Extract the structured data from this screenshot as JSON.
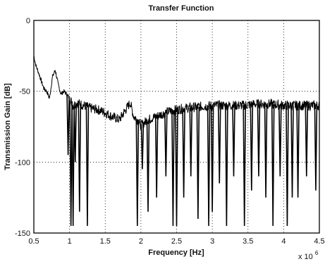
{
  "chart_data": {
    "type": "line",
    "title": "Transfer Function",
    "xlabel": "Frequency [Hz]",
    "ylabel": "Transmission Gain [dB]",
    "x_multiplier_label": "x 10",
    "x_multiplier_exponent": "6",
    "xlim": [
      0.5,
      4.5
    ],
    "ylim": [
      -150,
      0
    ],
    "x_ticks": [
      "0.5",
      "1",
      "1.5",
      "2",
      "2.5",
      "3",
      "3.5",
      "4",
      "4.5"
    ],
    "y_ticks": [
      "0",
      "-50",
      "-100",
      "-150"
    ],
    "grid": "dotted",
    "series": [
      {
        "values_note": "",
        "x": [
          0.5,
          0.53,
          0.56,
          0.6,
          0.64,
          0.68,
          0.72,
          0.76,
          0.8,
          0.84,
          0.88,
          0.92,
          0.96,
          1.0,
          1.05,
          1.1,
          1.2,
          1.3,
          1.4,
          1.5,
          1.6,
          1.7,
          1.8,
          1.85,
          1.9,
          1.95,
          2.0,
          2.1,
          2.2,
          2.3,
          2.4,
          2.5,
          2.6,
          2.8,
          3.0,
          3.2,
          3.4,
          3.6,
          3.8,
          4.0,
          4.2,
          4.4,
          4.5
        ],
        "y": [
          -25,
          -32,
          -36,
          -42,
          -48,
          -50,
          -55,
          -40,
          -35,
          -45,
          -52,
          -50,
          -52,
          -55,
          -60,
          -58,
          -60,
          -62,
          -63,
          -65,
          -68,
          -70,
          -62,
          -58,
          -68,
          -70,
          -74,
          -70,
          -68,
          -66,
          -64,
          -63,
          -62,
          -61,
          -60,
          -60,
          -60,
          -59,
          -59,
          -60,
          -60,
          -60,
          -60
        ]
      }
    ],
    "notch_x": [
      0.98,
      1.02,
      1.05,
      1.08,
      1.14,
      1.25,
      1.95,
      2.02,
      2.1,
      2.22,
      2.35,
      2.45,
      2.5,
      2.6,
      2.7,
      2.8,
      2.95,
      3.0,
      3.1,
      3.2,
      3.3,
      3.45,
      3.55,
      3.65,
      3.75,
      3.85,
      3.95,
      4.05,
      4.12,
      4.2,
      4.32,
      4.45
    ],
    "notch_depth": [
      -95,
      -145,
      -145,
      -100,
      -135,
      -145,
      -145,
      -105,
      -135,
      -125,
      -110,
      -145,
      -145,
      -125,
      -110,
      -140,
      -145,
      -135,
      -115,
      -145,
      -110,
      -145,
      -120,
      -110,
      -125,
      -145,
      -110,
      -145,
      -125,
      -125,
      -110,
      -120
    ]
  }
}
